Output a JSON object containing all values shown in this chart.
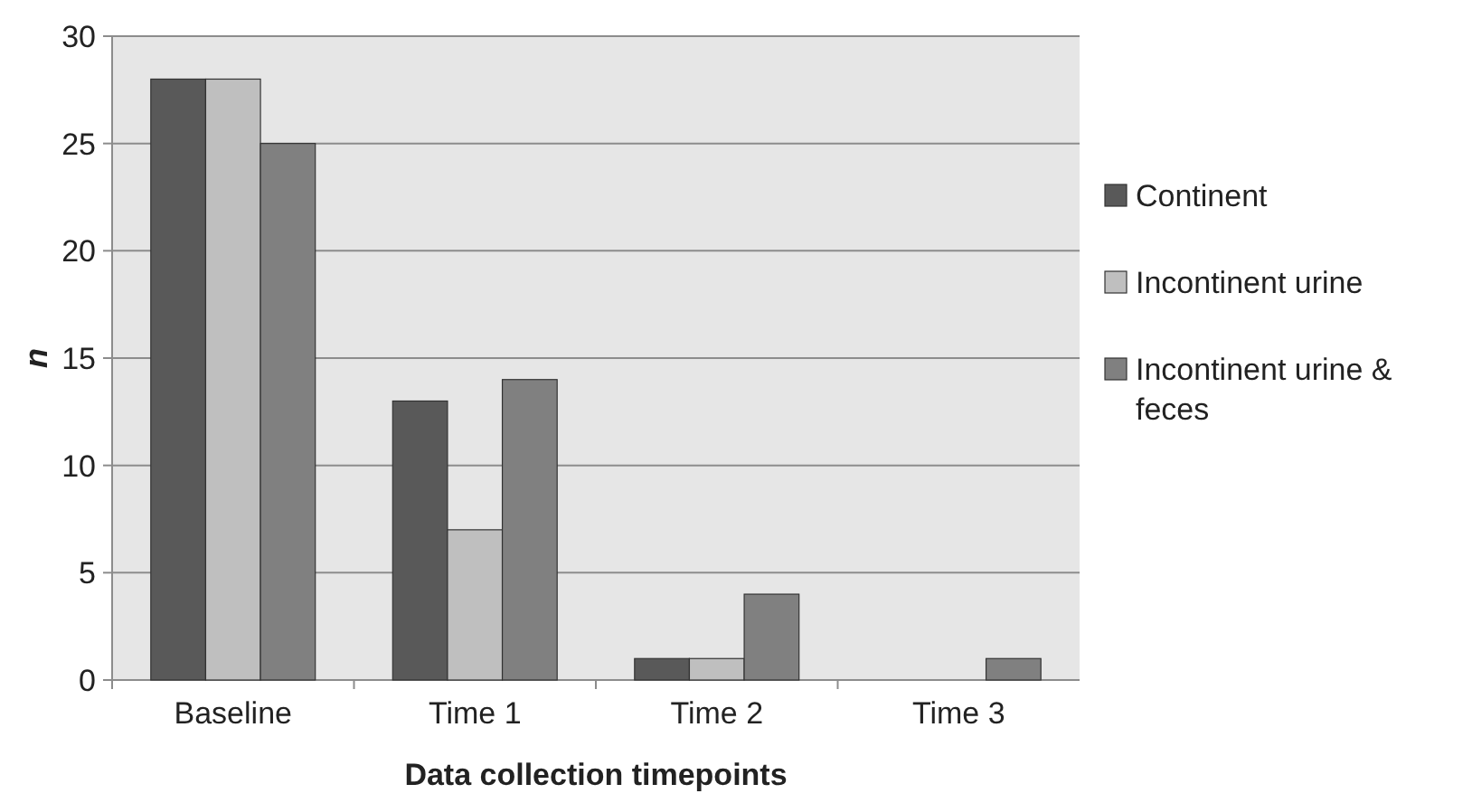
{
  "chart_data": {
    "type": "bar",
    "xlabel": "Data collection timepoints",
    "ylabel": "n",
    "categories": [
      "Baseline",
      "Time 1",
      "Time 2",
      "Time 3"
    ],
    "series": [
      {
        "name": "Continent",
        "color": "#595959",
        "values": [
          28,
          13,
          1,
          0
        ]
      },
      {
        "name": "Incontinent urine",
        "color": "#bfbfbf",
        "values": [
          28,
          7,
          1,
          0
        ]
      },
      {
        "name": "Incontinent urine & feces",
        "color": "#808080",
        "values": [
          25,
          14,
          4,
          1
        ]
      }
    ],
    "ylim": [
      0,
      30
    ],
    "yticks": [
      0,
      5,
      10,
      15,
      20,
      25,
      30
    ],
    "grid": "y",
    "legend": "right"
  }
}
